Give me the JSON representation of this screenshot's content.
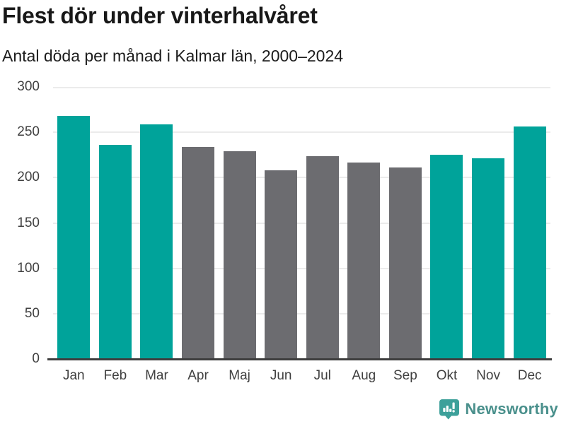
{
  "header": {
    "title": "Flest dör under vinterhalvåret",
    "subtitle": "Antal döda per månad i Kalmar län, 2000–2024"
  },
  "chart_data": {
    "type": "bar",
    "categories": [
      "Jan",
      "Feb",
      "Mar",
      "Apr",
      "Maj",
      "Jun",
      "Jul",
      "Aug",
      "Sep",
      "Okt",
      "Nov",
      "Dec"
    ],
    "values": [
      268,
      236,
      259,
      234,
      229,
      208,
      224,
      217,
      211,
      225,
      221,
      256
    ],
    "bar_palette": [
      "highlight",
      "highlight",
      "highlight",
      "muted",
      "muted",
      "muted",
      "muted",
      "muted",
      "muted",
      "highlight",
      "highlight",
      "highlight"
    ],
    "title": "Flest dör under vinterhalvåret",
    "subtitle": "Antal döda per månad i Kalmar län, 2000–2024",
    "xlabel": "",
    "ylabel": "",
    "ylim": [
      0,
      300
    ],
    "yticks": [
      0,
      50,
      100,
      150,
      200,
      250,
      300
    ],
    "grid": true,
    "legend": false
  },
  "colors": {
    "highlight": "#00a39a",
    "muted": "#6c6c70",
    "gridline": "#ebebeb",
    "axis": "#3e3e3e",
    "title_text": "#181818",
    "tick_text": "#404040",
    "logo_bubble": "#3da09a",
    "logo_text": "#4a908c"
  },
  "footer": {
    "brand": "Newsworthy",
    "logo_icon": "newsworthy-pin-barchart-icon"
  }
}
